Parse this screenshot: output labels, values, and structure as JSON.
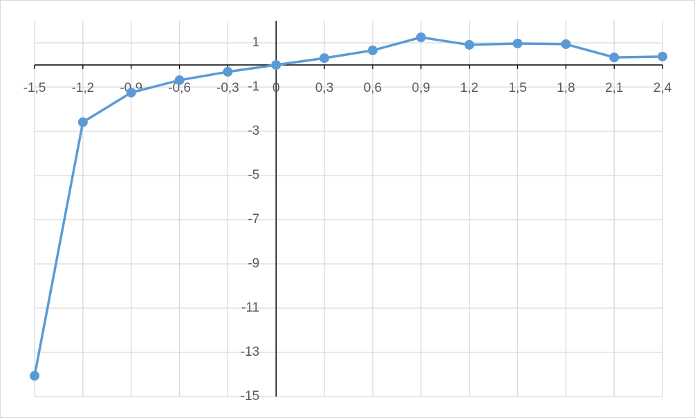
{
  "chart_data": {
    "type": "line",
    "x": [
      -1.5,
      -1.2,
      -0.9,
      -0.6,
      -0.3,
      0,
      0.3,
      0.6,
      0.9,
      1.2,
      1.5,
      1.8,
      2.1,
      2.4
    ],
    "series": [
      {
        "color": "#5b9bd5",
        "values": [
          -14.06,
          -2.59,
          -1.25,
          -0.69,
          -0.31,
          0,
          0.31,
          0.66,
          1.25,
          0.91,
          0.97,
          0.94,
          0.34,
          0.38
        ]
      }
    ],
    "xlim": [
      -1.5,
      2.4
    ],
    "xticks": [
      {
        "value": -1.5,
        "label": "-1,5"
      },
      {
        "value": -1.2,
        "label": "-1,2"
      },
      {
        "value": -0.9,
        "label": "-0,9"
      },
      {
        "value": -0.6,
        "label": "-0,6"
      },
      {
        "value": -0.3,
        "label": "-0,3"
      },
      0,
      {
        "value": 0.3,
        "label": "0,3"
      },
      {
        "value": 0.6,
        "label": "0,6"
      },
      {
        "value": 0.9,
        "label": "0,9"
      },
      {
        "value": 1.2,
        "label": "1,2"
      },
      {
        "value": 1.5,
        "label": "1,5"
      },
      {
        "value": 1.8,
        "label": "1,8"
      },
      {
        "value": 2.1,
        "label": "2,1"
      },
      {
        "value": 2.4,
        "label": "2,4"
      }
    ],
    "ylim": [
      -15,
      2
    ],
    "yticks": [
      1,
      -1,
      -3,
      -5,
      -7,
      -9,
      -11,
      -13,
      -15
    ],
    "grid": true
  }
}
